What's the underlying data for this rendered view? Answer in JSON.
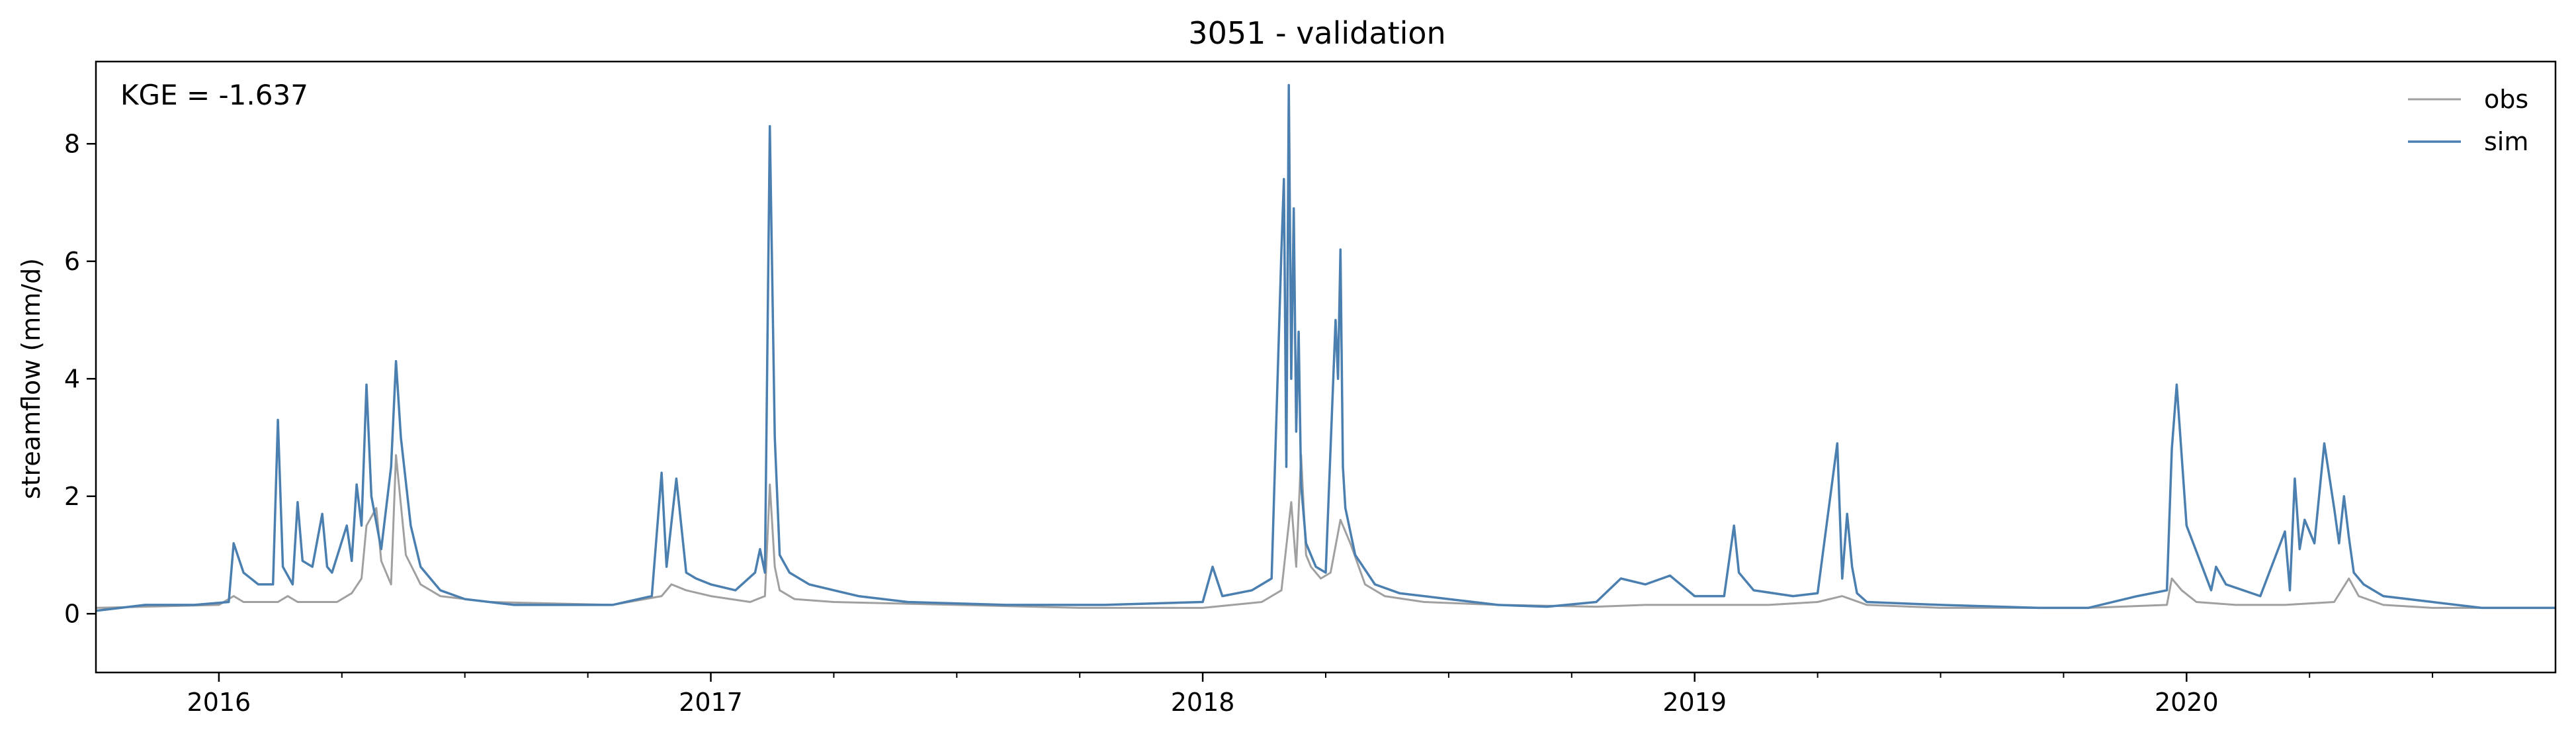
{
  "chart_data": {
    "type": "line",
    "title": "3051 - validation",
    "xlabel": "",
    "ylabel": "streamflow (mm/d)",
    "annotation": "KGE = -1.637",
    "xlim": [
      2015.75,
      2020.75
    ],
    "ylim": [
      -1.0,
      9.4
    ],
    "yticks": [
      0,
      2,
      4,
      6,
      8
    ],
    "xticks": [
      2016,
      2017,
      2018,
      2019,
      2020
    ],
    "xtick_labels": [
      "2016",
      "2017",
      "2018",
      "2019",
      "2020"
    ],
    "x_minor_ticks_per_year": 4,
    "grid": false,
    "legend_position": "top-right",
    "colors": {
      "obs": "#a0a0a0",
      "sim": "#4a7fb0"
    },
    "series": [
      {
        "name": "obs",
        "color": "#a0a0a0",
        "x": [
          2015.75,
          2016.0,
          2016.03,
          2016.05,
          2016.08,
          2016.12,
          2016.14,
          2016.16,
          2016.2,
          2016.24,
          2016.27,
          2016.29,
          2016.3,
          2016.32,
          2016.33,
          2016.35,
          2016.36,
          2016.38,
          2016.41,
          2016.45,
          2016.55,
          2016.8,
          2016.9,
          2016.92,
          2016.95,
          2017.0,
          2017.08,
          2017.11,
          2017.12,
          2017.13,
          2017.14,
          2017.17,
          2017.25,
          2017.5,
          2017.75,
          2018.0,
          2018.12,
          2018.16,
          2018.18,
          2018.19,
          2018.2,
          2018.21,
          2018.22,
          2018.24,
          2018.26,
          2018.28,
          2018.3,
          2018.33,
          2018.37,
          2018.45,
          2018.6,
          2018.8,
          2018.9,
          2019.0,
          2019.08,
          2019.15,
          2019.25,
          2019.3,
          2019.35,
          2019.5,
          2019.8,
          2019.96,
          2019.97,
          2019.99,
          2020.02,
          2020.1,
          2020.2,
          2020.3,
          2020.33,
          2020.35,
          2020.4,
          2020.5,
          2020.75
        ],
        "values": [
          0.1,
          0.15,
          0.3,
          0.2,
          0.2,
          0.2,
          0.3,
          0.2,
          0.2,
          0.2,
          0.35,
          0.6,
          1.5,
          1.8,
          0.9,
          0.5,
          2.7,
          1.0,
          0.5,
          0.3,
          0.2,
          0.15,
          0.3,
          0.5,
          0.4,
          0.3,
          0.2,
          0.3,
          2.2,
          0.8,
          0.4,
          0.25,
          0.2,
          0.15,
          0.1,
          0.1,
          0.2,
          0.4,
          1.9,
          0.8,
          2.7,
          1.0,
          0.8,
          0.6,
          0.7,
          1.6,
          1.2,
          0.5,
          0.3,
          0.2,
          0.15,
          0.12,
          0.15,
          0.15,
          0.15,
          0.15,
          0.2,
          0.3,
          0.15,
          0.1,
          0.1,
          0.15,
          0.6,
          0.4,
          0.2,
          0.15,
          0.15,
          0.2,
          0.6,
          0.3,
          0.15,
          0.1,
          0.1
        ]
      },
      {
        "name": "sim",
        "color": "#4a7fb0",
        "x": [
          2015.75,
          2015.8,
          2015.85,
          2015.95,
          2016.02,
          2016.03,
          2016.05,
          2016.08,
          2016.11,
          2016.12,
          2016.13,
          2016.15,
          2016.16,
          2016.17,
          2016.19,
          2016.21,
          2016.22,
          2016.23,
          2016.26,
          2016.27,
          2016.28,
          2016.29,
          2016.3,
          2016.31,
          2016.33,
          2016.35,
          2016.36,
          2016.37,
          2016.39,
          2016.41,
          2016.45,
          2016.5,
          2016.6,
          2016.8,
          2016.88,
          2016.9,
          2016.91,
          2016.93,
          2016.95,
          2016.97,
          2017.0,
          2017.05,
          2017.09,
          2017.1,
          2017.11,
          2017.12,
          2017.13,
          2017.14,
          2017.16,
          2017.2,
          2017.3,
          2017.4,
          2017.6,
          2017.8,
          2018.0,
          2018.02,
          2018.04,
          2018.1,
          2018.14,
          2018.16,
          2018.165,
          2018.17,
          2018.175,
          2018.18,
          2018.185,
          2018.19,
          2018.195,
          2018.2,
          2018.21,
          2018.23,
          2018.25,
          2018.27,
          2018.275,
          2018.28,
          2018.285,
          2018.29,
          2018.31,
          2018.35,
          2018.4,
          2018.5,
          2018.6,
          2018.7,
          2018.8,
          2018.85,
          2018.9,
          2018.95,
          2019.0,
          2019.06,
          2019.08,
          2019.09,
          2019.12,
          2019.2,
          2019.25,
          2019.29,
          2019.3,
          2019.31,
          2019.32,
          2019.33,
          2019.35,
          2019.5,
          2019.7,
          2019.8,
          2019.9,
          2019.96,
          2019.97,
          2019.98,
          2020.0,
          2020.05,
          2020.06,
          2020.08,
          2020.15,
          2020.2,
          2020.21,
          2020.22,
          2020.23,
          2020.24,
          2020.26,
          2020.28,
          2020.3,
          2020.31,
          2020.32,
          2020.33,
          2020.34,
          2020.36,
          2020.4,
          2020.5,
          2020.6,
          2020.75
        ],
        "values": [
          0.05,
          0.1,
          0.15,
          0.15,
          0.2,
          1.2,
          0.7,
          0.5,
          0.5,
          3.3,
          0.8,
          0.5,
          1.9,
          0.9,
          0.8,
          1.7,
          0.8,
          0.7,
          1.5,
          0.9,
          2.2,
          1.5,
          3.9,
          2.0,
          1.1,
          2.5,
          4.3,
          3.0,
          1.5,
          0.8,
          0.4,
          0.25,
          0.15,
          0.15,
          0.3,
          2.4,
          0.8,
          2.3,
          0.7,
          0.6,
          0.5,
          0.4,
          0.7,
          1.1,
          0.7,
          8.3,
          3.0,
          1.0,
          0.7,
          0.5,
          0.3,
          0.2,
          0.15,
          0.15,
          0.2,
          0.8,
          0.3,
          0.4,
          0.6,
          6.2,
          7.4,
          2.5,
          9.0,
          4.0,
          6.9,
          3.1,
          4.8,
          2.2,
          1.2,
          0.8,
          0.7,
          5.0,
          4.0,
          6.2,
          2.5,
          1.8,
          1.0,
          0.5,
          0.35,
          0.25,
          0.15,
          0.12,
          0.2,
          0.6,
          0.5,
          0.65,
          0.3,
          0.3,
          1.5,
          0.7,
          0.4,
          0.3,
          0.35,
          2.9,
          0.6,
          1.7,
          0.8,
          0.35,
          0.2,
          0.15,
          0.1,
          0.1,
          0.3,
          0.4,
          2.8,
          3.9,
          1.5,
          0.4,
          0.8,
          0.5,
          0.3,
          1.4,
          0.4,
          2.3,
          1.1,
          1.6,
          1.2,
          2.9,
          1.8,
          1.2,
          2.0,
          1.3,
          0.7,
          0.5,
          0.3,
          0.2,
          0.1,
          0.1
        ]
      }
    ]
  }
}
